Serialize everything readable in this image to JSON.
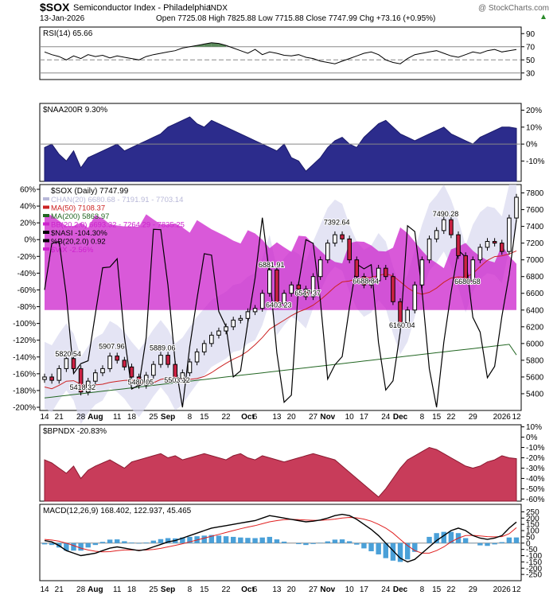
{
  "header": {
    "symbol": "$SOX",
    "name": "Semiconductor Index - Philadelphia",
    "exchange": "INDX",
    "date": "13-Jan-2026",
    "ohlc_text": "Open 7725.08  High 7825.88  Low 7715.88  Close 7747.99  Chg +73.16 (+0.95%)",
    "change_direction": "up",
    "copyright": "@ StockCharts.com"
  },
  "colors": {
    "pane_border": "#000000",
    "rsi_fill": "#5a8a5a",
    "naa_fill": "#2c2c8c",
    "bpndx_fill": "#c83c5a",
    "macd_hist": "#4aa0d8",
    "macd_signal": "#e02020",
    "bb_fill": "#d8d8f0",
    "vix_fill": "#cc22cc",
    "ma50": "#cc2222",
    "ma200": "#226622"
  },
  "chart_data": [
    {
      "id": "rsi",
      "type": "line",
      "title": "RSI(14) 65.66",
      "ylim": [
        20,
        100
      ],
      "ticks": [
        "90",
        "70",
        "50",
        "30"
      ],
      "tick_values": [
        90,
        70,
        50,
        30
      ],
      "reference_lines": [
        70,
        50,
        30
      ],
      "values": [
        62,
        58,
        55,
        50,
        56,
        52,
        58,
        55,
        57,
        53,
        56,
        54,
        52,
        50,
        55,
        58,
        60,
        62,
        64,
        68,
        70,
        72,
        74,
        76,
        75,
        72,
        68,
        64,
        60,
        66,
        58,
        62,
        60,
        57,
        56,
        58,
        54,
        52,
        48,
        46,
        44,
        48,
        52,
        56,
        60,
        62,
        58,
        50,
        46,
        44,
        52,
        58,
        60,
        62,
        64,
        60,
        56,
        54,
        58,
        62,
        60,
        64,
        66,
        62,
        64,
        65.66
      ]
    },
    {
      "id": "naa200r",
      "type": "area",
      "title": "$NAA200R 9.30%",
      "ylim": [
        -22,
        24
      ],
      "ticks": [
        "20%",
        "10%",
        "0%",
        "-10%"
      ],
      "tick_values": [
        20,
        10,
        0,
        -10
      ],
      "values": [
        -2,
        0,
        -6,
        -10,
        -4,
        -14,
        -8,
        -6,
        -4,
        -2,
        0,
        -4,
        -2,
        0,
        2,
        4,
        6,
        10,
        12,
        14,
        16,
        12,
        10,
        14,
        12,
        10,
        8,
        6,
        4,
        2,
        0,
        -2,
        -4,
        0,
        -8,
        -10,
        -16,
        -12,
        -8,
        -2,
        2,
        4,
        0,
        -2,
        4,
        8,
        12,
        14,
        10,
        6,
        4,
        2,
        4,
        6,
        8,
        10,
        6,
        4,
        2,
        0,
        4,
        6,
        8,
        10,
        10,
        9.3
      ]
    },
    {
      "id": "price",
      "type": "candlestick",
      "title": "$SOX (Daily) 7747.99",
      "ylim": [
        5200,
        7900
      ],
      "right_ticks": [
        "7800",
        "7600",
        "7400",
        "7200",
        "7000",
        "6800",
        "6600",
        "6400",
        "6200",
        "6000",
        "5800",
        "5600",
        "5400"
      ],
      "right_tick_values": [
        7800,
        7600,
        7400,
        7200,
        7000,
        6800,
        6600,
        6400,
        6200,
        6000,
        5800,
        5600,
        5400
      ],
      "left_ticks": [
        "60%",
        "40%",
        "20%",
        "0%",
        "-20%",
        "-40%",
        "-60%",
        "-80%",
        "-100%",
        "-120%",
        "-140%",
        "-160%",
        "-180%",
        "-200%"
      ],
      "left_tick_values": [
        60,
        40,
        20,
        0,
        -20,
        -40,
        -60,
        -80,
        -100,
        -120,
        -140,
        -160,
        -180,
        -200
      ],
      "legend": [
        {
          "label": "CHAN(20) 6680.68 - 7191.91 - 7703.14",
          "color": "#b8b8d8"
        },
        {
          "label": "MA(50) 7108.37",
          "color": "#cc2222"
        },
        {
          "label": "MA(200) 5863.97",
          "color": "#226622"
        },
        {
          "label": "BB(20,2.0) 6693.32 - 7264.29 - 7835.25",
          "color": "#cc22cc"
        },
        {
          "label": "$NASI -104.30%",
          "color": "#000000"
        },
        {
          "label": "%B(20,2.0) 0.92",
          "color": "#000000"
        },
        {
          "label": "$VIX -2.56%",
          "color": "#cc22cc"
        }
      ],
      "annotations": [
        {
          "text": "5820.54",
          "i": 3,
          "v": 5820
        },
        {
          "text": "5418.32",
          "i": 5,
          "v": 5418
        },
        {
          "text": "5907.96",
          "i": 9,
          "v": 5908
        },
        {
          "text": "5480.05",
          "i": 13,
          "v": 5480
        },
        {
          "text": "5889.06",
          "i": 16,
          "v": 5889
        },
        {
          "text": "5503.12",
          "i": 18,
          "v": 5503
        },
        {
          "text": "6881.91",
          "i": 31,
          "v": 6882
        },
        {
          "text": "6403.23",
          "i": 32,
          "v": 6403
        },
        {
          "text": "6547.37",
          "i": 36,
          "v": 6547
        },
        {
          "text": "7392.64",
          "i": 40,
          "v": 7393
        },
        {
          "text": "6688.84",
          "i": 44,
          "v": 6689
        },
        {
          "text": "6160.04",
          "i": 49,
          "v": 6160
        },
        {
          "text": "7490.28",
          "i": 55,
          "v": 7490
        },
        {
          "text": "6680.68",
          "i": 58,
          "v": 6681
        }
      ],
      "close": [
        5600,
        5560,
        5700,
        5820,
        5700,
        5420,
        5550,
        5650,
        5700,
        5850,
        5800,
        5720,
        5600,
        5500,
        5620,
        5750,
        5860,
        5750,
        5580,
        5650,
        5780,
        5900,
        6000,
        6100,
        6150,
        6200,
        6280,
        6300,
        6380,
        6420,
        6600,
        6880,
        6480,
        6600,
        6700,
        6650,
        6560,
        6800,
        7000,
        7200,
        7300,
        7250,
        7000,
        6800,
        6700,
        6750,
        6900,
        6800,
        6500,
        6250,
        6400,
        6700,
        7000,
        7250,
        7350,
        7480,
        7300,
        7050,
        6750,
        7000,
        7150,
        7220,
        7200,
        7100,
        7500,
        7747.99
      ],
      "ma200": [
        5350,
        5360,
        5370,
        5380,
        5390,
        5400,
        5410,
        5420,
        5430,
        5440,
        5450,
        5460,
        5470,
        5480,
        5490,
        5500,
        5510,
        5520,
        5530,
        5540,
        5550,
        5560,
        5570,
        5580,
        5590,
        5600,
        5610,
        5620,
        5630,
        5640,
        5650,
        5660,
        5670,
        5680,
        5690,
        5700,
        5710,
        5720,
        5730,
        5740,
        5750,
        5760,
        5770,
        5780,
        5790,
        5800,
        5810,
        5820,
        5830,
        5840,
        5850,
        5860,
        5870,
        5880,
        5890,
        5900,
        5910,
        5920,
        5930,
        5940,
        5950,
        5960,
        5970,
        5980,
        5990,
        5863.97
      ]
    },
    {
      "id": "bpndx",
      "type": "area",
      "title": "$BPNDX -20.83%",
      "ylim": [
        -62,
        12
      ],
      "ticks": [
        "10%",
        "0%",
        "-10%",
        "-20%",
        "-30%",
        "-40%",
        "-50%",
        "-60%"
      ],
      "tick_values": [
        10,
        0,
        -10,
        -20,
        -30,
        -40,
        -50,
        -60
      ],
      "values": [
        -22,
        -25,
        -30,
        -35,
        -28,
        -40,
        -32,
        -28,
        -25,
        -22,
        -26,
        -30,
        -24,
        -22,
        -20,
        -18,
        -16,
        -20,
        -18,
        -22,
        -20,
        -18,
        -16,
        -18,
        -20,
        -22,
        -18,
        -16,
        -20,
        -22,
        -18,
        -20,
        -22,
        -24,
        -22,
        -20,
        -18,
        -16,
        -18,
        -20,
        -22,
        -28,
        -34,
        -40,
        -46,
        -52,
        -58,
        -50,
        -40,
        -30,
        -22,
        -18,
        -14,
        -10,
        -12,
        -16,
        -20,
        -24,
        -28,
        -30,
        -28,
        -24,
        -22,
        -18,
        -20,
        -20.83
      ]
    },
    {
      "id": "macd",
      "type": "line",
      "title": "MACD(12,26,9) 168.402, 122.937, 45.465",
      "title_parts": {
        "label": "MACD(12,26,9)",
        "macd": "168.402",
        "signal": "122.937",
        "hist": "45.465"
      },
      "ylim": [
        -300,
        310
      ],
      "ticks": [
        "250",
        "200",
        "150",
        "100",
        "50",
        "0",
        "-50",
        "-100",
        "-150",
        "-200",
        "-250"
      ],
      "tick_values": [
        250,
        200,
        150,
        100,
        50,
        0,
        -50,
        -100,
        -150,
        -200,
        -250
      ],
      "macd": [
        20,
        10,
        -20,
        -60,
        -80,
        -100,
        -90,
        -80,
        -60,
        -40,
        -30,
        -40,
        -50,
        -60,
        -50,
        -30,
        -10,
        10,
        20,
        40,
        60,
        80,
        100,
        120,
        130,
        140,
        150,
        160,
        170,
        180,
        200,
        220,
        210,
        200,
        190,
        180,
        170,
        175,
        185,
        200,
        220,
        230,
        220,
        190,
        150,
        110,
        60,
        0,
        -60,
        -120,
        -150,
        -130,
        -80,
        -30,
        20,
        60,
        100,
        120,
        100,
        60,
        40,
        30,
        40,
        60,
        120,
        168.402
      ],
      "signal": [
        30,
        25,
        15,
        0,
        -20,
        -40,
        -55,
        -65,
        -70,
        -68,
        -60,
        -55,
        -55,
        -56,
        -55,
        -50,
        -42,
        -30,
        -18,
        -5,
        10,
        25,
        40,
        55,
        70,
        85,
        100,
        115,
        128,
        140,
        155,
        170,
        180,
        188,
        190,
        188,
        185,
        182,
        182,
        186,
        192,
        200,
        205,
        202,
        192,
        175,
        150,
        120,
        80,
        30,
        -20,
        -60,
        -80,
        -80,
        -60,
        -30,
        10,
        40,
        60,
        62,
        58,
        52,
        50,
        52,
        75,
        122.937
      ],
      "x_labels": [
        {
          "label": "14",
          "i": 0
        },
        {
          "label": "21",
          "i": 2
        },
        {
          "label": "28",
          "i": 4
        },
        {
          "label": "Aug",
          "i": 6
        },
        {
          "label": "11",
          "i": 8
        },
        {
          "label": "18",
          "i": 10
        },
        {
          "label": "25",
          "i": 12
        },
        {
          "label": "Sep",
          "i": 14
        },
        {
          "label": "8",
          "i": 16
        },
        {
          "label": "15",
          "i": 18
        },
        {
          "label": "22",
          "i": 20
        },
        {
          "label": "Oct",
          "i": 23
        },
        {
          "label": "6",
          "i": 24
        },
        {
          "label": "13",
          "i": 26
        },
        {
          "label": "20",
          "i": 28
        },
        {
          "label": "27",
          "i": 30
        },
        {
          "label": "Nov",
          "i": 32
        },
        {
          "label": "10",
          "i": 34
        },
        {
          "label": "17",
          "i": 36
        },
        {
          "label": "24",
          "i": 38
        },
        {
          "label": "Dec",
          "i": 40
        },
        {
          "label": "8",
          "i": 42
        },
        {
          "label": "15",
          "i": 44
        },
        {
          "label": "22",
          "i": 46
        },
        {
          "label": "29",
          "i": 48
        },
        {
          "label": "2026",
          "i": 51
        },
        {
          "label": "12",
          "i": 53
        }
      ]
    }
  ]
}
